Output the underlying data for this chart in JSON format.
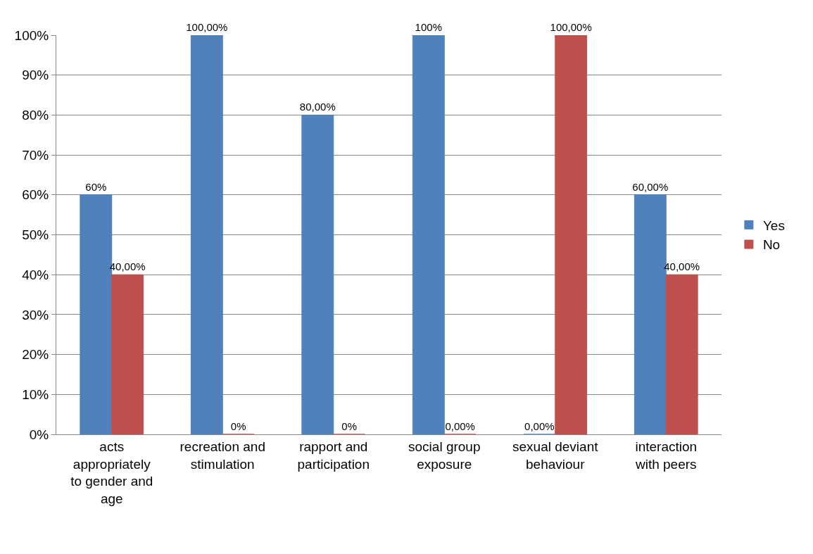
{
  "chart_data": {
    "type": "bar",
    "categories": [
      "acts appropriately to gender and age",
      "recreation and stimulation",
      "rapport and participation",
      "social group exposure",
      "sexual deviant behaviour",
      "interaction with peers"
    ],
    "series": [
      {
        "name": "Yes",
        "color": "#4f81bd",
        "values": [
          60,
          100,
          80,
          100,
          0,
          60
        ],
        "value_labels": [
          "60%",
          "100,00%",
          "80,00%",
          "100%",
          "0,00%",
          "60,00%"
        ]
      },
      {
        "name": "No",
        "color": "#c0504d",
        "values": [
          40,
          0,
          0,
          0,
          100,
          40
        ],
        "value_labels": [
          "40,00%",
          "0%",
          "0%",
          "0,00%",
          "100,00%",
          "40,00%"
        ]
      }
    ],
    "ylim": [
      0,
      100
    ],
    "yticks": [
      {
        "value": 0,
        "label": "0%"
      },
      {
        "value": 10,
        "label": "10%"
      },
      {
        "value": 20,
        "label": "20%"
      },
      {
        "value": 30,
        "label": "30%"
      },
      {
        "value": 40,
        "label": "40%"
      },
      {
        "value": 50,
        "label": "50%"
      },
      {
        "value": 60,
        "label": "60%"
      },
      {
        "value": 70,
        "label": "70%"
      },
      {
        "value": 80,
        "label": "80%"
      },
      {
        "value": 90,
        "label": "90%"
      },
      {
        "value": 100,
        "label": "100%"
      }
    ],
    "grid": "y",
    "legend": "right"
  }
}
